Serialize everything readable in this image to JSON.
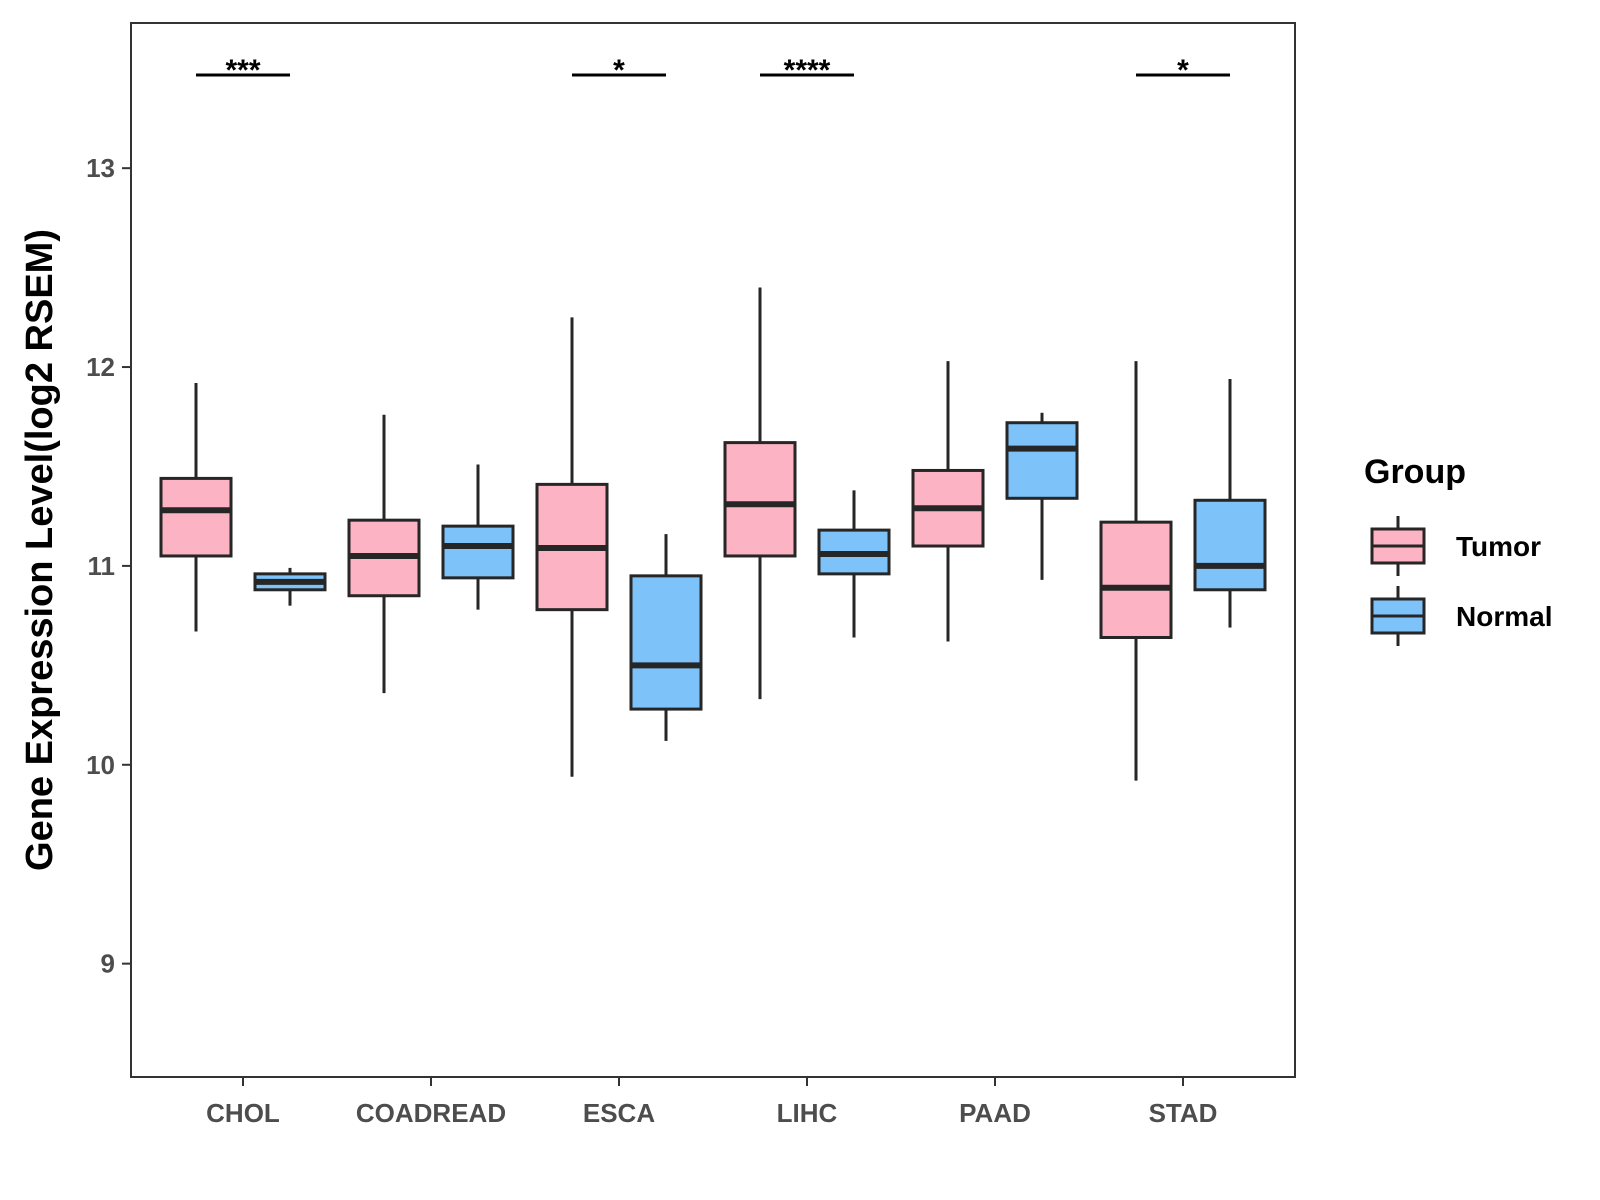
{
  "chart_data": {
    "type": "boxplot",
    "title": "",
    "xlabel": "",
    "ylabel": "Gene Expression Level(log2 RSEM)",
    "ylim": [
      8.43,
      13.73
    ],
    "yticks": [
      9,
      10,
      11,
      12,
      13
    ],
    "grid": false,
    "legend": {
      "title": "Group",
      "position": "right",
      "entries": [
        {
          "name": "Tumor",
          "color": "#fcb3c4"
        },
        {
          "name": "Normal",
          "color": "#7dc3fa"
        }
      ]
    },
    "categories": [
      "CHOL",
      "COADREAD",
      "ESCA",
      "LIHC",
      "PAAD",
      "STAD"
    ],
    "series": [
      {
        "name": "Tumor",
        "color": "#fcb3c4",
        "boxes": [
          {
            "category": "CHOL",
            "whisker_low": 10.67,
            "q1": 11.05,
            "median": 11.28,
            "q3": 11.44,
            "whisker_high": 11.92
          },
          {
            "category": "COADREAD",
            "whisker_low": 10.36,
            "q1": 10.85,
            "median": 11.05,
            "q3": 11.23,
            "whisker_high": 11.76
          },
          {
            "category": "ESCA",
            "whisker_low": 9.94,
            "q1": 10.78,
            "median": 11.09,
            "q3": 11.41,
            "whisker_high": 12.25
          },
          {
            "category": "LIHC",
            "whisker_low": 10.33,
            "q1": 11.05,
            "median": 11.31,
            "q3": 11.62,
            "whisker_high": 12.4
          },
          {
            "category": "PAAD",
            "whisker_low": 10.62,
            "q1": 11.1,
            "median": 11.29,
            "q3": 11.48,
            "whisker_high": 12.03
          },
          {
            "category": "STAD",
            "whisker_low": 9.92,
            "q1": 10.64,
            "median": 10.89,
            "q3": 11.22,
            "whisker_high": 12.03
          }
        ]
      },
      {
        "name": "Normal",
        "color": "#7dc3fa",
        "boxes": [
          {
            "category": "CHOL",
            "whisker_low": 10.8,
            "q1": 10.88,
            "median": 10.92,
            "q3": 10.96,
            "whisker_high": 10.99
          },
          {
            "category": "COADREAD",
            "whisker_low": 10.78,
            "q1": 10.94,
            "median": 11.1,
            "q3": 11.2,
            "whisker_high": 11.51
          },
          {
            "category": "ESCA",
            "whisker_low": 10.12,
            "q1": 10.28,
            "median": 10.5,
            "q3": 10.95,
            "whisker_high": 11.16
          },
          {
            "category": "LIHC",
            "whisker_low": 10.64,
            "q1": 10.96,
            "median": 11.06,
            "q3": 11.18,
            "whisker_high": 11.38
          },
          {
            "category": "PAAD",
            "whisker_low": 10.93,
            "q1": 11.34,
            "median": 11.59,
            "q3": 11.72,
            "whisker_high": 11.77
          },
          {
            "category": "STAD",
            "whisker_low": 10.69,
            "q1": 10.88,
            "median": 11.0,
            "q3": 11.33,
            "whisker_high": 11.94
          }
        ]
      }
    ],
    "significance": [
      {
        "category": "CHOL",
        "label": "***"
      },
      {
        "category": "ESCA",
        "label": "*"
      },
      {
        "category": "LIHC",
        "label": "****"
      },
      {
        "category": "STAD",
        "label": "*"
      }
    ]
  }
}
